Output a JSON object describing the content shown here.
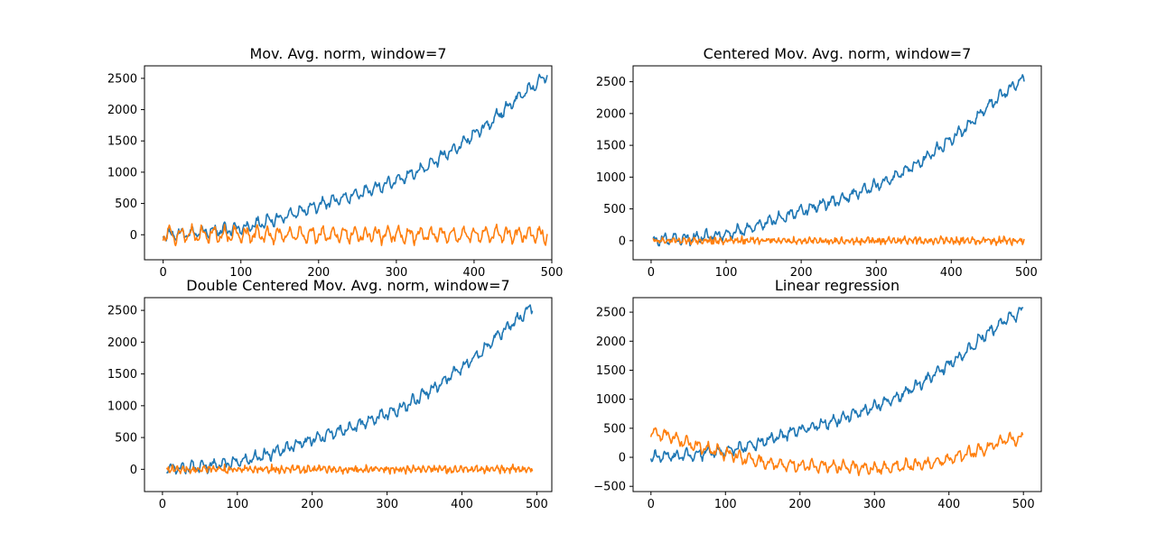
{
  "colors": {
    "series_1": "#1f77b4",
    "series_2": "#ff7f0e"
  },
  "chart_data": [
    {
      "type": "line",
      "title": "Mov. Avg. norm, window=7",
      "xlim": [
        -24,
        500
      ],
      "ylim": [
        -400,
        2700
      ],
      "xticks": [
        0,
        100,
        200,
        300,
        400,
        500
      ],
      "yticks": [
        0,
        500,
        1000,
        1500,
        2000,
        2500
      ],
      "grid": false,
      "x_range": [
        0,
        494
      ],
      "series": [
        {
          "color": "#1f77b4",
          "values": [
            [
              0,
              0
            ],
            [
              25,
              20
            ],
            [
              50,
              40
            ],
            [
              75,
              70
            ],
            [
              100,
              100
            ],
            [
              125,
              180
            ],
            [
              150,
              270
            ],
            [
              175,
              370
            ],
            [
              200,
              470
            ],
            [
              225,
              560
            ],
            [
              250,
              640
            ],
            [
              275,
              760
            ],
            [
              300,
              870
            ],
            [
              325,
              1000
            ],
            [
              350,
              1180
            ],
            [
              375,
              1380
            ],
            [
              400,
              1600
            ],
            [
              425,
              1840
            ],
            [
              450,
              2120
            ],
            [
              475,
              2370
            ],
            [
              494,
              2560
            ]
          ],
          "noise": {
            "amp": 70,
            "period": 14,
            "jitter": 35
          }
        },
        {
          "color": "#ff7f0e",
          "values": [
            [
              0,
              0
            ],
            [
              100,
              0
            ],
            [
              200,
              0
            ],
            [
              300,
              0
            ],
            [
              400,
              0
            ],
            [
              494,
              0
            ]
          ],
          "noise": {
            "amp": 95,
            "period": 14,
            "jitter": 40
          }
        }
      ]
    },
    {
      "type": "line",
      "title": "Centered Mov. Avg. norm, window=7",
      "xlim": [
        -24,
        520
      ],
      "ylim": [
        -300,
        2750
      ],
      "xticks": [
        0,
        100,
        200,
        300,
        400,
        500
      ],
      "yticks": [
        0,
        500,
        1000,
        1500,
        2000,
        2500
      ],
      "grid": false,
      "x_range": [
        3,
        497
      ],
      "series": [
        {
          "color": "#1f77b4",
          "values": [
            [
              3,
              0
            ],
            [
              25,
              20
            ],
            [
              50,
              40
            ],
            [
              75,
              70
            ],
            [
              100,
              100
            ],
            [
              125,
              180
            ],
            [
              150,
              270
            ],
            [
              175,
              370
            ],
            [
              200,
              470
            ],
            [
              225,
              560
            ],
            [
              250,
              640
            ],
            [
              275,
              760
            ],
            [
              300,
              870
            ],
            [
              325,
              1000
            ],
            [
              350,
              1180
            ],
            [
              375,
              1380
            ],
            [
              400,
              1600
            ],
            [
              425,
              1840
            ],
            [
              450,
              2120
            ],
            [
              475,
              2370
            ],
            [
              497,
              2550
            ]
          ],
          "noise": {
            "amp": 65,
            "period": 14,
            "jitter": 35
          }
        },
        {
          "color": "#ff7f0e",
          "values": [
            [
              3,
              0
            ],
            [
              100,
              0
            ],
            [
              200,
              0
            ],
            [
              300,
              0
            ],
            [
              400,
              0
            ],
            [
              497,
              0
            ]
          ],
          "noise": {
            "amp": 30,
            "period": 7,
            "jitter": 35
          }
        }
      ]
    },
    {
      "type": "line",
      "title": "Double Centered Mov. Avg. norm, window=7",
      "xlim": [
        -24,
        520
      ],
      "ylim": [
        -350,
        2700
      ],
      "xticks": [
        0,
        100,
        200,
        300,
        400,
        500
      ],
      "yticks": [
        0,
        500,
        1000,
        1500,
        2000,
        2500
      ],
      "grid": false,
      "x_range": [
        6,
        494
      ],
      "series": [
        {
          "color": "#1f77b4",
          "values": [
            [
              6,
              0
            ],
            [
              25,
              20
            ],
            [
              50,
              40
            ],
            [
              75,
              70
            ],
            [
              100,
              100
            ],
            [
              125,
              180
            ],
            [
              150,
              270
            ],
            [
              175,
              370
            ],
            [
              200,
              470
            ],
            [
              225,
              560
            ],
            [
              250,
              640
            ],
            [
              275,
              760
            ],
            [
              300,
              870
            ],
            [
              325,
              1000
            ],
            [
              350,
              1180
            ],
            [
              375,
              1380
            ],
            [
              400,
              1600
            ],
            [
              425,
              1840
            ],
            [
              450,
              2120
            ],
            [
              475,
              2370
            ],
            [
              494,
              2550
            ]
          ],
          "noise": {
            "amp": 65,
            "period": 14,
            "jitter": 35
          }
        },
        {
          "color": "#ff7f0e",
          "values": [
            [
              6,
              0
            ],
            [
              100,
              0
            ],
            [
              200,
              0
            ],
            [
              300,
              0
            ],
            [
              400,
              0
            ],
            [
              494,
              0
            ]
          ],
          "noise": {
            "amp": 30,
            "period": 7,
            "jitter": 40
          }
        }
      ]
    },
    {
      "type": "line",
      "title": "Linear regression",
      "xlim": [
        -24,
        524
      ],
      "ylim": [
        -590,
        2750
      ],
      "xticks": [
        0,
        100,
        200,
        300,
        400,
        500
      ],
      "yticks": [
        -500,
        0,
        500,
        1000,
        1500,
        2000,
        2500
      ],
      "grid": false,
      "x_range": [
        0,
        499
      ],
      "series": [
        {
          "color": "#1f77b4",
          "values": [
            [
              0,
              0
            ],
            [
              25,
              20
            ],
            [
              50,
              40
            ],
            [
              75,
              70
            ],
            [
              100,
              100
            ],
            [
              125,
              180
            ],
            [
              150,
              270
            ],
            [
              175,
              370
            ],
            [
              200,
              470
            ],
            [
              225,
              560
            ],
            [
              250,
              640
            ],
            [
              275,
              760
            ],
            [
              300,
              870
            ],
            [
              325,
              1000
            ],
            [
              350,
              1180
            ],
            [
              375,
              1380
            ],
            [
              400,
              1600
            ],
            [
              425,
              1840
            ],
            [
              450,
              2120
            ],
            [
              475,
              2370
            ],
            [
              499,
              2520
            ]
          ],
          "noise": {
            "amp": 70,
            "period": 14,
            "jitter": 40
          }
        },
        {
          "color": "#ff7f0e",
          "values": [
            [
              0,
              430
            ],
            [
              25,
              360
            ],
            [
              50,
              230
            ],
            [
              75,
              150
            ],
            [
              100,
              70
            ],
            [
              125,
              -20
            ],
            [
              150,
              -80
            ],
            [
              175,
              -120
            ],
            [
              200,
              -140
            ],
            [
              225,
              -150
            ],
            [
              250,
              -160
            ],
            [
              275,
              -180
            ],
            [
              300,
              -190
            ],
            [
              325,
              -170
            ],
            [
              350,
              -140
            ],
            [
              375,
              -110
            ],
            [
              400,
              -40
            ],
            [
              425,
              60
            ],
            [
              450,
              150
            ],
            [
              475,
              300
            ],
            [
              499,
              330
            ]
          ],
          "noise": {
            "amp": 75,
            "period": 14,
            "jitter": 40
          }
        }
      ]
    }
  ]
}
